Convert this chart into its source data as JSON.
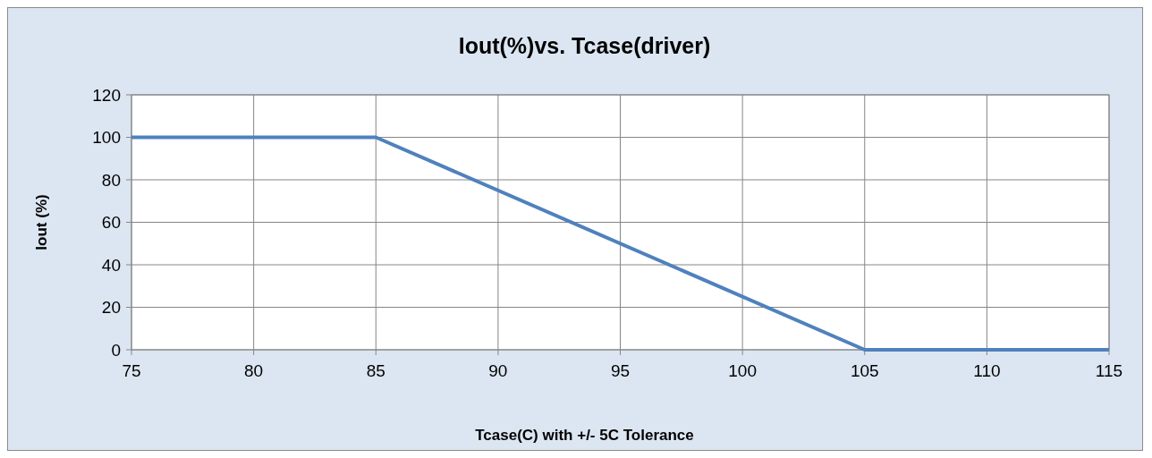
{
  "chart_data": {
    "type": "line",
    "title": "Iout(%)vs. Tcase(driver)",
    "xlabel": "Tcase(C) with +/- 5C Tolerance",
    "ylabel": "Iout (%)",
    "x": [
      75,
      85,
      105,
      115
    ],
    "series": [
      {
        "color": "#4f81bd",
        "values": [
          100,
          100,
          0,
          0
        ]
      }
    ],
    "xlim": [
      75,
      115
    ],
    "xticks": [
      75,
      80,
      85,
      90,
      95,
      100,
      105,
      110,
      115
    ],
    "ylim": [
      0,
      120
    ],
    "yticks": [
      0,
      20,
      40,
      60,
      80,
      100,
      120
    ],
    "grid": true,
    "marker": "none",
    "line_style": "solid"
  }
}
